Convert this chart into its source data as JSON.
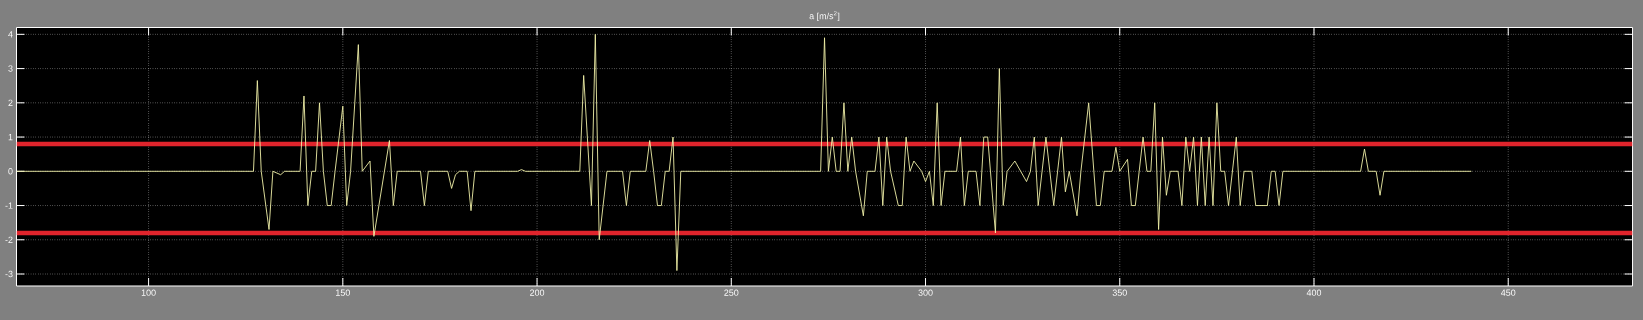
{
  "chart_data": {
    "type": "line",
    "title": "a [m/s$^{2}$]",
    "x": [
      66,
      127,
      128,
      129,
      131,
      132,
      134,
      135,
      139,
      140,
      141,
      142,
      143,
      144,
      145,
      146,
      147,
      148,
      150,
      151,
      152,
      154,
      155,
      157,
      158,
      162,
      163,
      164,
      170,
      171,
      172,
      177,
      178,
      179,
      180,
      182,
      183,
      184,
      195,
      196,
      197,
      211,
      212,
      214,
      215,
      216,
      218,
      222,
      223,
      224,
      228,
      229,
      230,
      231,
      232,
      233,
      234,
      235,
      236,
      237,
      273,
      274,
      275,
      276,
      277,
      278,
      279,
      280,
      281,
      282,
      284,
      285,
      287,
      288,
      289,
      290,
      291,
      293,
      294,
      295,
      296,
      297,
      299,
      300,
      301,
      302,
      303,
      304,
      305,
      308,
      309,
      310,
      311,
      313,
      314,
      315,
      316,
      318,
      319,
      320,
      321,
      323,
      326,
      327,
      328,
      329,
      330,
      331,
      333,
      335,
      336,
      337,
      339,
      340,
      342,
      344,
      345,
      346,
      348,
      349,
      350,
      352,
      353,
      354,
      355,
      356,
      357,
      358,
      359,
      360,
      361,
      362,
      363,
      365,
      366,
      367,
      368,
      369,
      370,
      371,
      372,
      373,
      374,
      375,
      376,
      377,
      378,
      380,
      381,
      382,
      384,
      385,
      388,
      389,
      390,
      391,
      392,
      412,
      413,
      414,
      416,
      417,
      418,
      440.5
    ],
    "series": [
      {
        "color": "#f0f0a8",
        "values": [
          0,
          0,
          2.65,
          0,
          -1.7,
          0,
          -0.1,
          0,
          0,
          2.2,
          -1,
          0,
          0,
          2,
          0,
          -1,
          -1,
          0,
          1.9,
          -1,
          0,
          3.7,
          0,
          0.3,
          -1.9,
          0.9,
          -1,
          0,
          0,
          -1,
          0,
          0,
          -0.5,
          -0.1,
          0,
          0,
          -1.15,
          0,
          0,
          0.05,
          0,
          0,
          2.8,
          -1,
          4,
          -2,
          0,
          0,
          -1,
          0,
          0,
          0.9,
          0,
          -1,
          -1,
          0,
          0,
          1,
          -2.9,
          0,
          0,
          3.9,
          0,
          1,
          0,
          0,
          2,
          0,
          1,
          0,
          -1.3,
          0,
          0,
          1,
          -1,
          1,
          0,
          -1,
          -1,
          1,
          0,
          0.3,
          0,
          -0.3,
          0,
          -1,
          2,
          -1,
          0,
          0,
          1,
          -1,
          0,
          0,
          -1,
          1,
          1,
          -1.8,
          3,
          -1,
          0,
          0.3,
          -0.3,
          0,
          1,
          -1,
          0,
          1,
          -1,
          1,
          -0.6,
          0,
          -1.3,
          0,
          2,
          -1,
          -1,
          0,
          0,
          0.7,
          0,
          0.35,
          -1,
          -1,
          0,
          1,
          0,
          0,
          2,
          -1.7,
          1,
          -0.7,
          0,
          0,
          -1,
          1,
          0,
          1,
          -1,
          1,
          -1,
          1,
          -1,
          2,
          0,
          0,
          -1,
          1,
          -1,
          0,
          0,
          -1,
          -1,
          0,
          0,
          -1,
          0,
          0,
          0.65,
          0,
          0,
          -0.7,
          0,
          0
        ]
      }
    ],
    "xlim": [
      66,
      482
    ],
    "ylim": [
      -3.35,
      4.2
    ],
    "xticks": [
      100,
      150,
      200,
      250,
      300,
      350,
      400,
      450
    ],
    "yticks": [
      -3,
      -2,
      -1,
      0,
      1,
      2,
      3,
      4
    ],
    "grid": true,
    "ref_lines": [
      {
        "axis": "y",
        "value": 0.8,
        "color": "#e0242c"
      },
      {
        "axis": "y",
        "value": -1.8,
        "color": "#e0242c"
      }
    ]
  }
}
